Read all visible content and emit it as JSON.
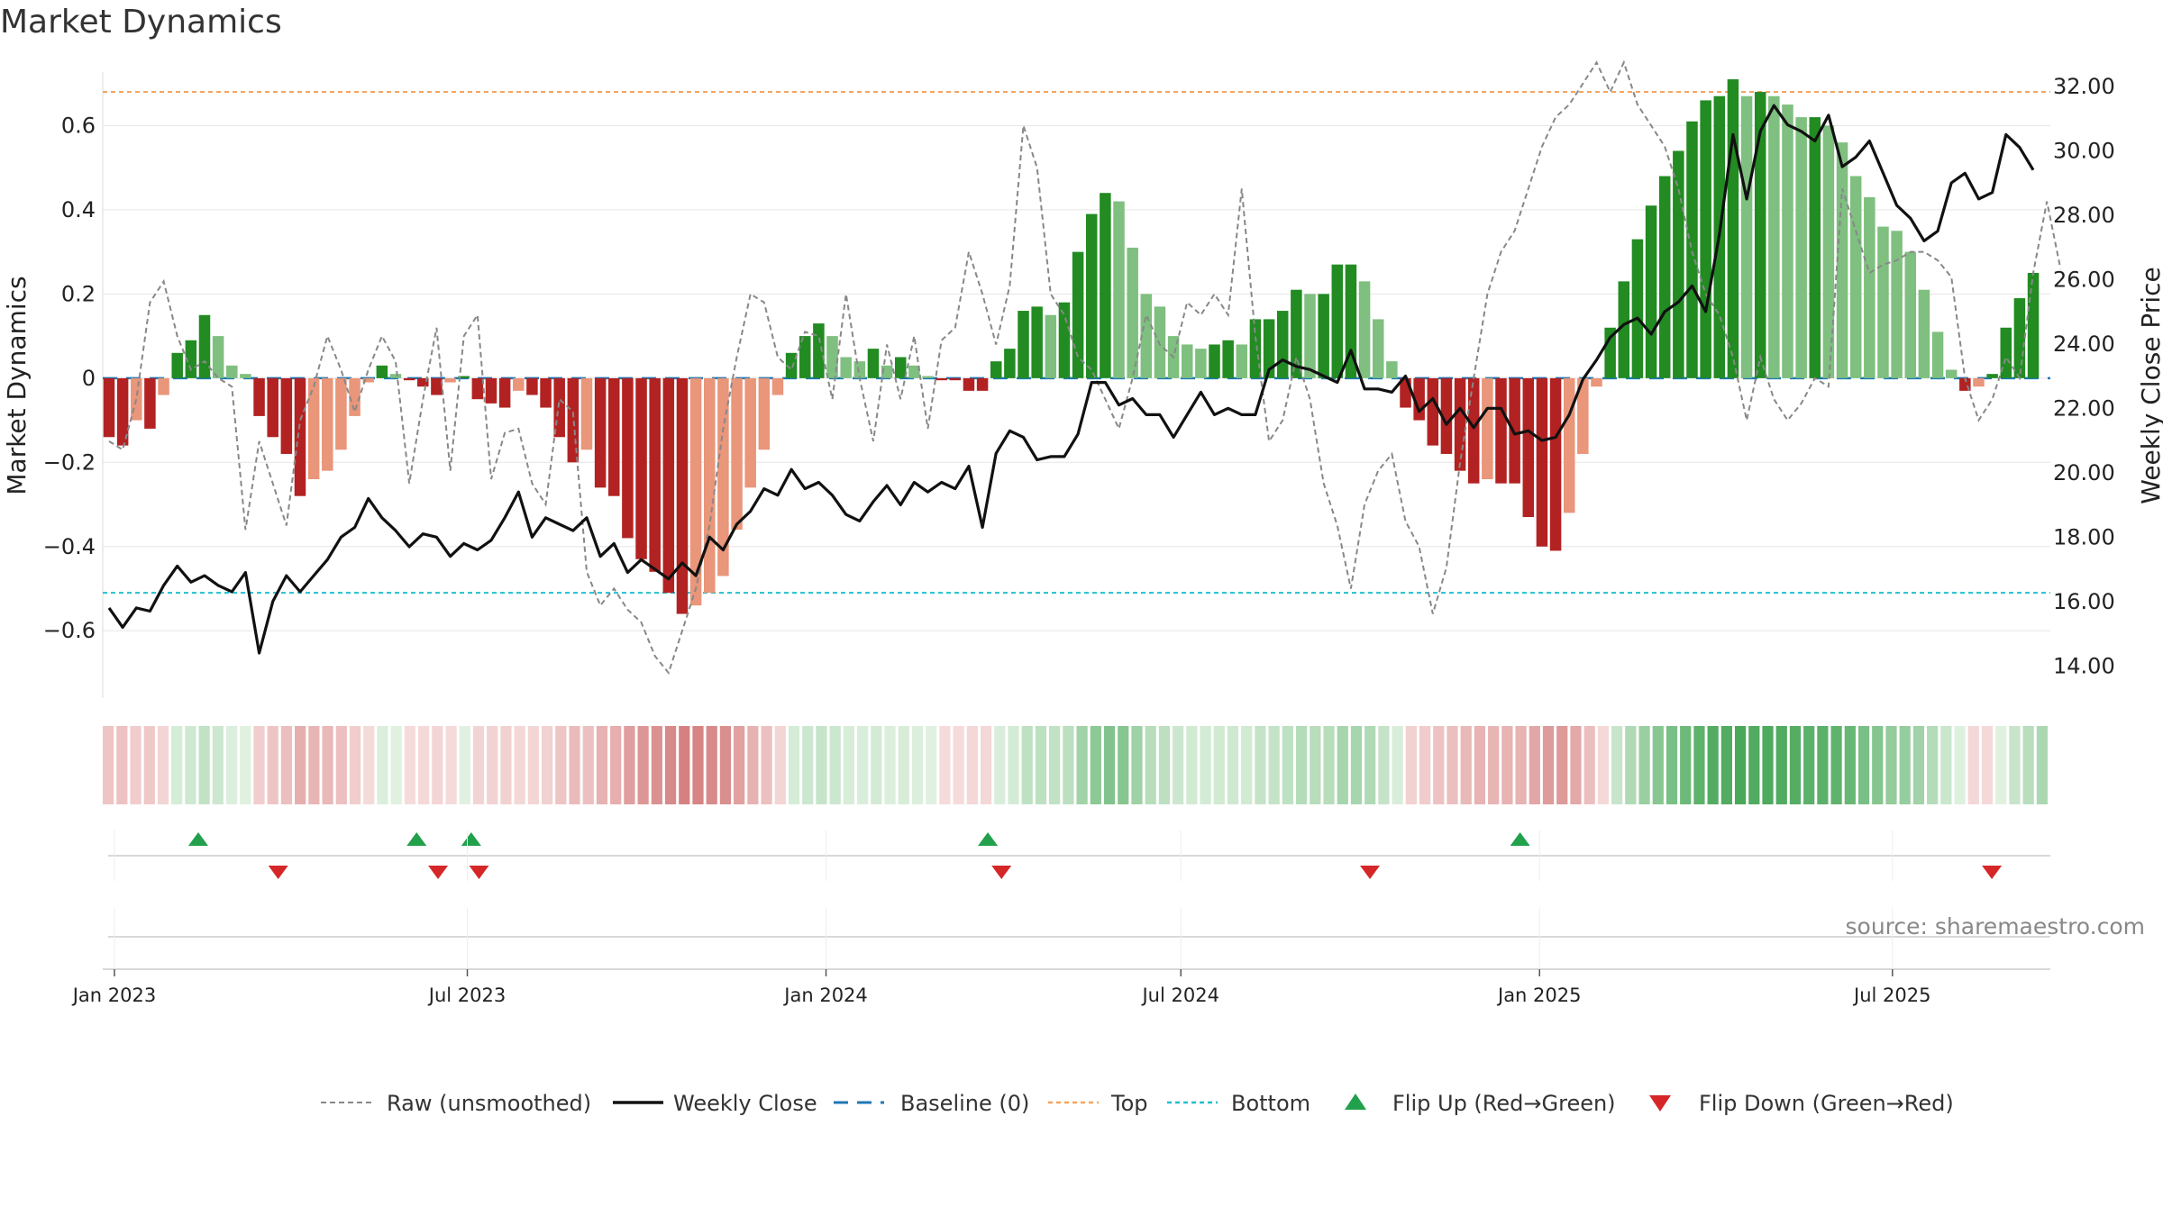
{
  "chart_data": {
    "type": "bar",
    "title": "Market Dynamics",
    "source": "source: sharemaestro.com",
    "ylabel_left": "Market Dynamics",
    "ylabel_right": "Weekly Close Price",
    "ylim_left": [
      -0.76,
      0.77
    ],
    "ylim_right": [
      13.0,
      33.0
    ],
    "yticks_left": [
      -0.6,
      -0.4,
      -0.2,
      0,
      0.2,
      0.4,
      0.6
    ],
    "ytick_labels_left": [
      "−0.6",
      "−0.4",
      "−0.2",
      "0",
      "0.2",
      "0.4",
      "0.6"
    ],
    "yticks_right": [
      14,
      16,
      18,
      20,
      22,
      24,
      26,
      28,
      30,
      32
    ],
    "ytick_labels_right": [
      "14.00",
      "16.00",
      "18.00",
      "20.00",
      "22.00",
      "24.00",
      "26.00",
      "28.00",
      "30.00",
      "32.00"
    ],
    "x_start": "2022-12-26",
    "x_end": "2025-09-20",
    "date_ticks": [
      "2023-01-01",
      "2023-07-01",
      "2024-01-01",
      "2024-07-01",
      "2025-01-01",
      "2025-07-01"
    ],
    "date_tick_labels": [
      "Jan 2023",
      "Jul 2023",
      "Jan 2024",
      "Jul 2024",
      "Jan 2025",
      "Jul 2025"
    ],
    "top_level": 0.68,
    "bottom_level": -0.51,
    "baseline": 0,
    "grid": true,
    "legend_position": "bottom",
    "colors": {
      "strong_green": "#228b22",
      "light_green": "#7fbf7f",
      "strong_red": "#b22222",
      "light_red": "#e9967a",
      "close_line": "#111111",
      "raw_line": "#888888",
      "baseline": "#1f77b4",
      "top": "#f4a460",
      "bottom": "#20c0d0",
      "flip_up": "#22a04b",
      "flip_down": "#d62728"
    },
    "dynamics": [
      -0.14,
      -0.16,
      -0.1,
      -0.12,
      -0.04,
      0.06,
      0.09,
      0.15,
      0.1,
      0.03,
      0.01,
      -0.09,
      -0.14,
      -0.18,
      -0.28,
      -0.24,
      -0.22,
      -0.17,
      -0.09,
      -0.01,
      0.03,
      0.01,
      -0.005,
      -0.02,
      -0.04,
      -0.01,
      0.005,
      -0.05,
      -0.06,
      -0.07,
      -0.03,
      -0.04,
      -0.07,
      -0.14,
      -0.2,
      -0.17,
      -0.26,
      -0.28,
      -0.38,
      -0.43,
      -0.46,
      -0.51,
      -0.56,
      -0.54,
      -0.51,
      -0.47,
      -0.36,
      -0.26,
      -0.17,
      -0.04,
      0.06,
      0.1,
      0.13,
      0.1,
      0.05,
      0.04,
      0.07,
      0.03,
      0.05,
      0.03,
      0.005,
      -0.005,
      -0.005,
      -0.03,
      -0.03,
      0.04,
      0.07,
      0.16,
      0.17,
      0.15,
      0.18,
      0.3,
      0.39,
      0.44,
      0.42,
      0.31,
      0.2,
      0.17,
      0.1,
      0.08,
      0.07,
      0.08,
      0.09,
      0.08,
      0.14,
      0.14,
      0.16,
      0.21,
      0.2,
      0.2,
      0.27,
      0.27,
      0.23,
      0.14,
      0.04,
      -0.07,
      -0.1,
      -0.16,
      -0.18,
      -0.22,
      -0.25,
      -0.24,
      -0.25,
      -0.25,
      -0.33,
      -0.4,
      -0.41,
      -0.32,
      -0.18,
      -0.02,
      0.12,
      0.23,
      0.33,
      0.41,
      0.48,
      0.54,
      0.61,
      0.66,
      0.67,
      0.71,
      0.67,
      0.68,
      0.67,
      0.65,
      0.62,
      0.62,
      0.6,
      0.56,
      0.48,
      0.43,
      0.36,
      0.35,
      0.3,
      0.21,
      0.11,
      0.02,
      -0.03,
      -0.02,
      0.01,
      0.12,
      0.19,
      0.25
    ],
    "raw": [
      -0.15,
      -0.17,
      -0.05,
      0.18,
      0.23,
      0.1,
      0.02,
      0.04,
      0.0,
      -0.02,
      -0.36,
      -0.15,
      -0.25,
      -0.35,
      -0.1,
      -0.02,
      0.1,
      0.02,
      -0.08,
      0.02,
      0.1,
      0.04,
      -0.25,
      -0.05,
      0.12,
      -0.22,
      0.1,
      0.15,
      -0.24,
      -0.13,
      -0.12,
      -0.25,
      -0.3,
      -0.05,
      -0.08,
      -0.46,
      -0.54,
      -0.5,
      -0.55,
      -0.58,
      -0.66,
      -0.7,
      -0.6,
      -0.5,
      -0.35,
      -0.12,
      0.05,
      0.2,
      0.18,
      0.05,
      0.02,
      0.11,
      0.1,
      -0.05,
      0.2,
      0.0,
      -0.15,
      0.08,
      -0.05,
      0.1,
      -0.12,
      0.09,
      0.12,
      0.3,
      0.2,
      0.08,
      0.22,
      0.6,
      0.5,
      0.2,
      0.15,
      0.05,
      0.02,
      -0.05,
      -0.12,
      0.0,
      0.15,
      0.08,
      0.05,
      0.18,
      0.15,
      0.2,
      0.15,
      0.45,
      0.1,
      -0.15,
      -0.1,
      0.05,
      -0.05,
      -0.25,
      -0.35,
      -0.5,
      -0.3,
      -0.22,
      -0.18,
      -0.34,
      -0.4,
      -0.56,
      -0.45,
      -0.2,
      0.0,
      0.2,
      0.3,
      0.35,
      0.45,
      0.55,
      0.62,
      0.65,
      0.7,
      0.75,
      0.68,
      0.75,
      0.65,
      0.6,
      0.55,
      0.45,
      0.3,
      0.2,
      0.15,
      0.05,
      -0.1,
      0.05,
      -0.05,
      -0.1,
      -0.06,
      0.0,
      -0.02,
      0.45,
      0.35,
      0.25,
      0.27,
      0.28,
      0.3,
      0.3,
      0.28,
      0.24,
      0.0,
      -0.1,
      -0.05,
      0.05,
      0.0,
      0.25,
      0.42,
      0.26
    ],
    "raw_note": "",
    "close": [
      15.8,
      15.2,
      15.8,
      15.7,
      16.5,
      17.1,
      16.6,
      16.8,
      16.5,
      16.3,
      16.9,
      14.4,
      16.0,
      16.8,
      16.3,
      16.8,
      17.3,
      18.0,
      18.3,
      19.2,
      18.6,
      18.2,
      17.7,
      18.1,
      18.0,
      17.4,
      17.8,
      17.6,
      17.9,
      18.6,
      19.4,
      18.0,
      18.6,
      18.4,
      18.2,
      18.6,
      17.4,
      17.8,
      16.9,
      17.3,
      17.0,
      16.7,
      17.2,
      16.8,
      18.0,
      17.6,
      18.4,
      18.8,
      19.5,
      19.3,
      20.1,
      19.5,
      19.7,
      19.3,
      18.7,
      18.5,
      19.1,
      19.6,
      19.0,
      19.7,
      19.4,
      19.7,
      19.5,
      20.2,
      18.3,
      20.6,
      21.3,
      21.1,
      20.4,
      20.5,
      20.5,
      21.2,
      22.8,
      22.8,
      22.1,
      22.3,
      21.8,
      21.8,
      21.1,
      21.8,
      22.5,
      21.8,
      22.0,
      21.8,
      21.8,
      23.2,
      23.5,
      23.3,
      23.2,
      23.0,
      22.8,
      23.8,
      22.6,
      22.6,
      22.5,
      23.0,
      21.9,
      22.3,
      21.5,
      22.0,
      21.4,
      22.0,
      22.0,
      21.2,
      21.3,
      21.0,
      21.1,
      21.8,
      22.9,
      23.5,
      24.2,
      24.6,
      24.8,
      24.3,
      25.0,
      25.3,
      25.8,
      25.0,
      27.4,
      30.5,
      28.5,
      30.6,
      31.4,
      30.8,
      30.6,
      30.3,
      31.1,
      29.5,
      29.8,
      30.3,
      29.3,
      28.3,
      27.9,
      27.2,
      27.5,
      29.0,
      29.3,
      28.5,
      28.7,
      30.5,
      30.1,
      29.4
    ],
    "flip_up": [
      "2023-02-13",
      "2023-06-05",
      "2023-07-03",
      "2024-03-24",
      "2024-12-22"
    ],
    "flip_down": [
      "2023-03-26",
      "2023-06-16",
      "2023-07-07",
      "2024-03-31",
      "2024-10-06",
      "2025-08-21"
    ],
    "flip_up_note": "",
    "legend": [
      {
        "key": "raw",
        "label": "Raw (unsmoothed)"
      },
      {
        "key": "close",
        "label": "Weekly Close"
      },
      {
        "key": "baseline",
        "label": "Baseline (0)"
      },
      {
        "key": "top",
        "label": "Top"
      },
      {
        "key": "bottom",
        "label": "Bottom"
      },
      {
        "key": "up",
        "label": "Flip Up (Red→Green)"
      },
      {
        "key": "down",
        "label": "Flip Down (Green→Red)"
      }
    ]
  }
}
